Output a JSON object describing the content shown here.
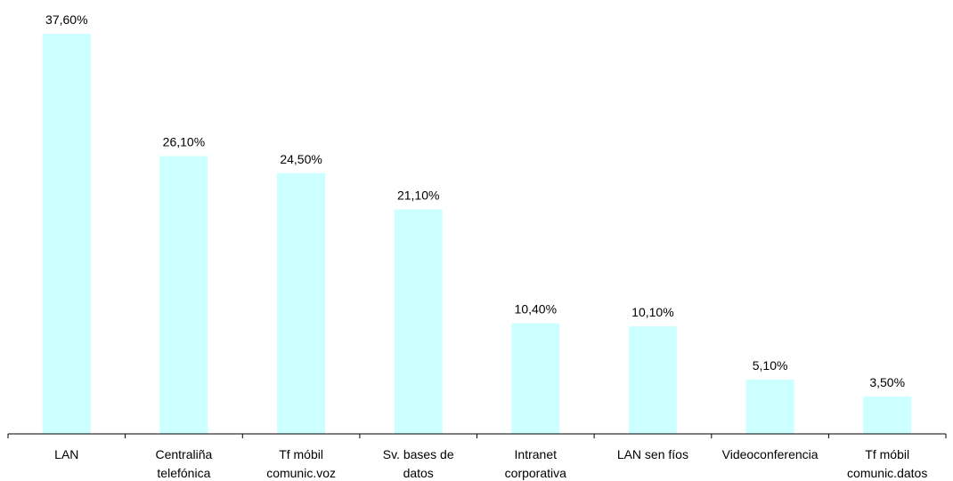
{
  "chart_data": {
    "type": "bar",
    "categories": [
      [
        "LAN"
      ],
      [
        "Centraliña",
        "telefónica"
      ],
      [
        "Tf móbil",
        "comunic.voz"
      ],
      [
        "Sv. bases de",
        "datos"
      ],
      [
        "Intranet",
        "corporativa"
      ],
      [
        "LAN sen fíos"
      ],
      [
        "Videoconferencia"
      ],
      [
        "Tf móbil",
        "comunic.datos"
      ]
    ],
    "values": [
      37.6,
      26.1,
      24.5,
      21.1,
      10.4,
      10.1,
      5.1,
      3.5
    ],
    "value_labels": [
      "37,60%",
      "26,10%",
      "24,50%",
      "21,10%",
      "10,40%",
      "10,10%",
      "5,10%",
      "3,50%"
    ],
    "ylim": [
      0,
      40
    ],
    "bar_color": "#ccffff",
    "axis_color": "#000000",
    "grid": false,
    "legend": "none"
  }
}
